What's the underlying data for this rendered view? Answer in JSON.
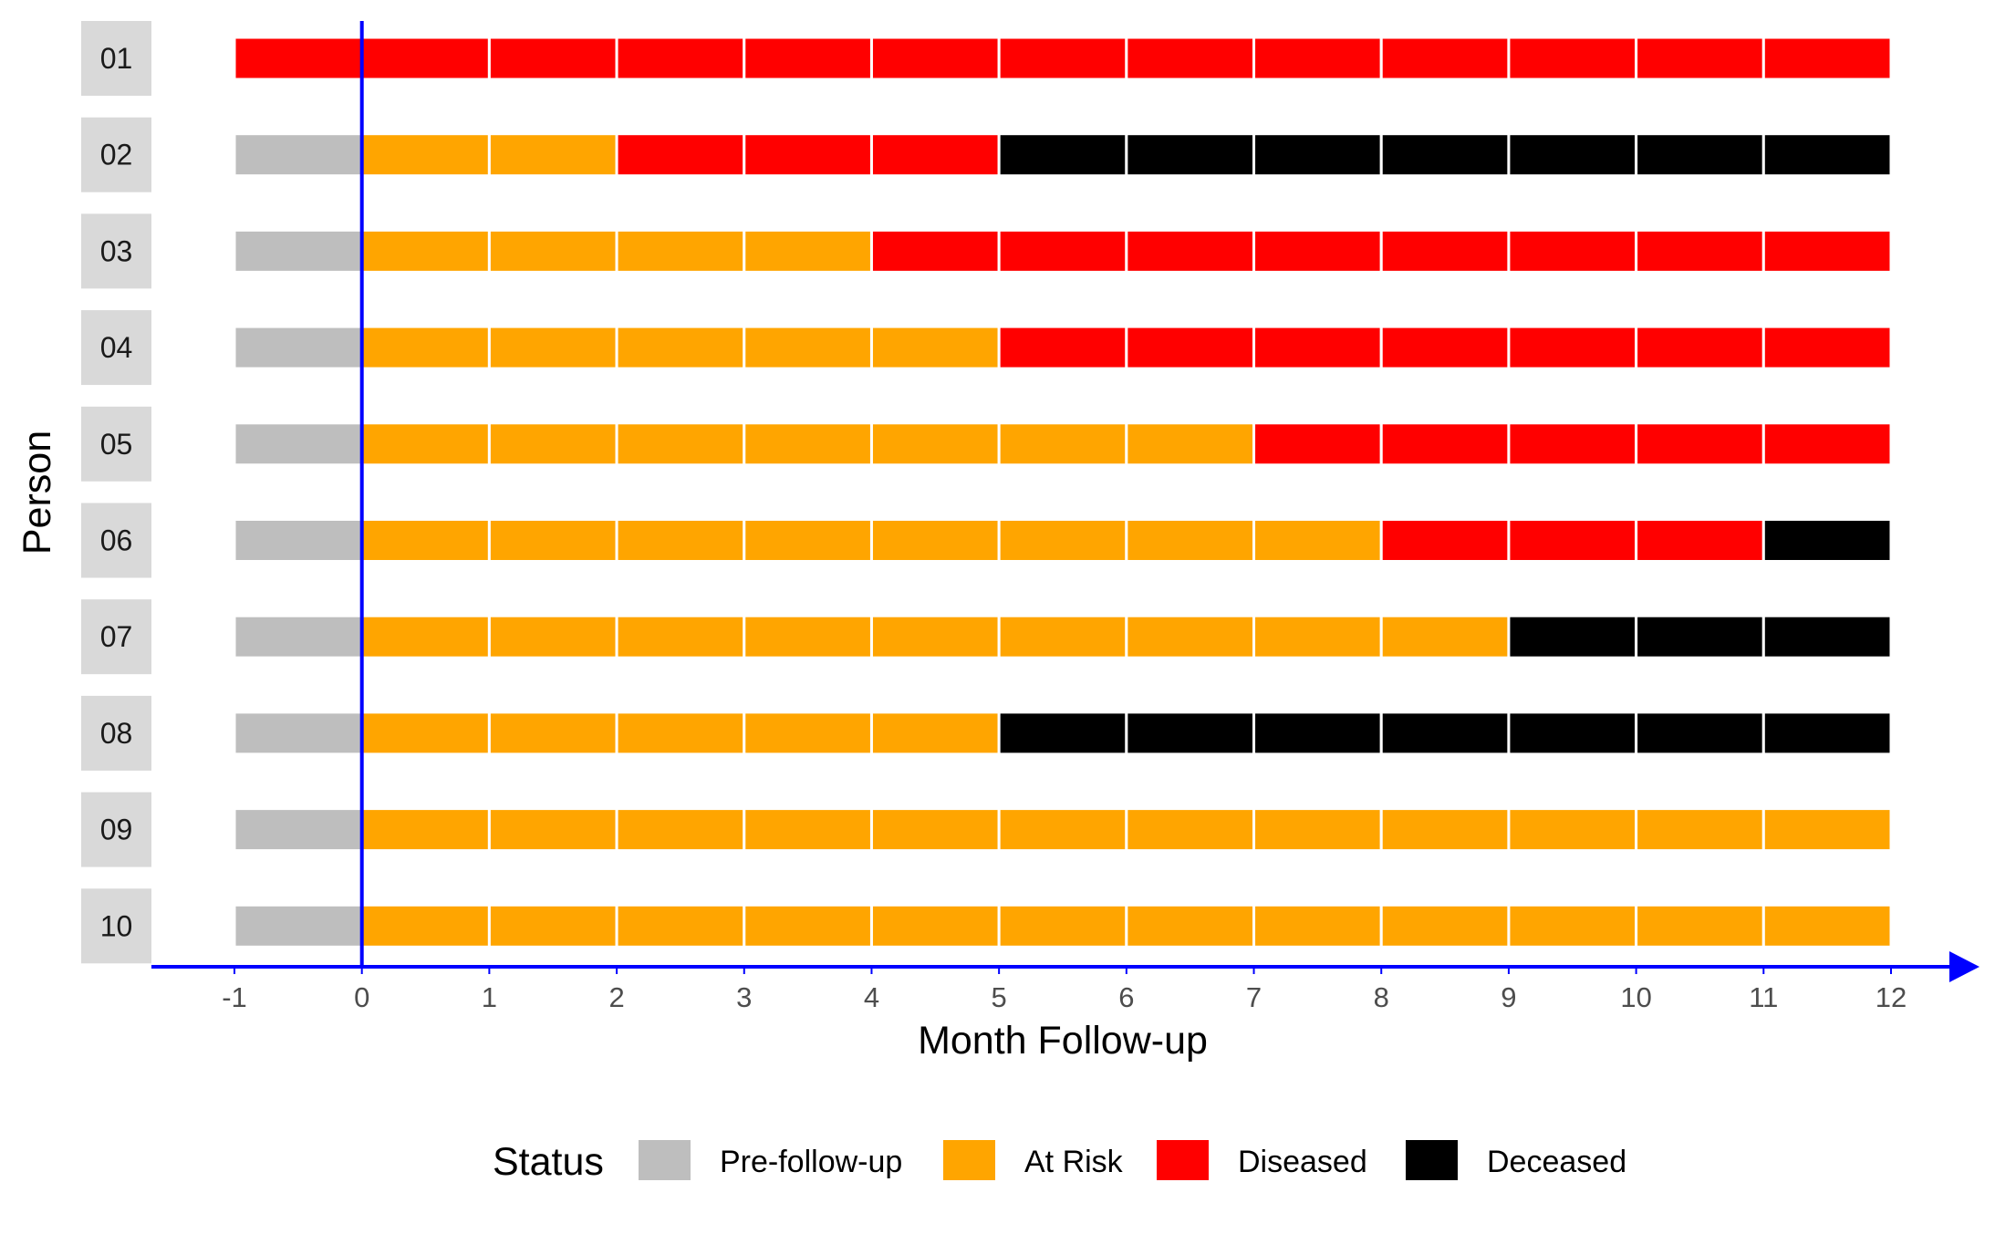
{
  "chart_data": {
    "type": "bar",
    "subtype": "horizontal-timeline",
    "title": "",
    "xlabel": "Month Follow-up",
    "ylabel": "Person",
    "xlim": [
      -1,
      12
    ],
    "x_ticks": [
      -1,
      0,
      1,
      2,
      3,
      4,
      5,
      6,
      7,
      8,
      9,
      10,
      11,
      12
    ],
    "reference_line_x": 0,
    "grid": false,
    "legend": {
      "title": "Status",
      "position": "bottom",
      "entries": [
        {
          "label": "Pre-follow-up",
          "color": "#bebebe"
        },
        {
          "label": "At Risk",
          "color": "#ffa500"
        },
        {
          "label": "Diseased",
          "color": "#ff0000"
        },
        {
          "label": "Deceased",
          "color": "#000000"
        }
      ]
    },
    "persons": [
      {
        "id": "01",
        "segments": [
          {
            "status": "Diseased",
            "start": -1,
            "end": 12
          }
        ]
      },
      {
        "id": "02",
        "segments": [
          {
            "status": "Pre-follow-up",
            "start": -1,
            "end": 0
          },
          {
            "status": "At Risk",
            "start": 0,
            "end": 2
          },
          {
            "status": "Diseased",
            "start": 2,
            "end": 5
          },
          {
            "status": "Deceased",
            "start": 5,
            "end": 12
          }
        ]
      },
      {
        "id": "03",
        "segments": [
          {
            "status": "Pre-follow-up",
            "start": -1,
            "end": 0
          },
          {
            "status": "At Risk",
            "start": 0,
            "end": 4
          },
          {
            "status": "Diseased",
            "start": 4,
            "end": 12
          }
        ]
      },
      {
        "id": "04",
        "segments": [
          {
            "status": "Pre-follow-up",
            "start": -1,
            "end": 0
          },
          {
            "status": "At Risk",
            "start": 0,
            "end": 5
          },
          {
            "status": "Diseased",
            "start": 5,
            "end": 12
          }
        ]
      },
      {
        "id": "05",
        "segments": [
          {
            "status": "Pre-follow-up",
            "start": -1,
            "end": 0
          },
          {
            "status": "At Risk",
            "start": 0,
            "end": 7
          },
          {
            "status": "Diseased",
            "start": 7,
            "end": 12
          }
        ]
      },
      {
        "id": "06",
        "segments": [
          {
            "status": "Pre-follow-up",
            "start": -1,
            "end": 0
          },
          {
            "status": "At Risk",
            "start": 0,
            "end": 8
          },
          {
            "status": "Diseased",
            "start": 8,
            "end": 11
          },
          {
            "status": "Deceased",
            "start": 11,
            "end": 12
          }
        ]
      },
      {
        "id": "07",
        "segments": [
          {
            "status": "Pre-follow-up",
            "start": -1,
            "end": 0
          },
          {
            "status": "At Risk",
            "start": 0,
            "end": 9
          },
          {
            "status": "Deceased",
            "start": 9,
            "end": 12
          }
        ]
      },
      {
        "id": "08",
        "segments": [
          {
            "status": "Pre-follow-up",
            "start": -1,
            "end": 0
          },
          {
            "status": "At Risk",
            "start": 0,
            "end": 5
          },
          {
            "status": "Deceased",
            "start": 5,
            "end": 12
          }
        ]
      },
      {
        "id": "09",
        "segments": [
          {
            "status": "Pre-follow-up",
            "start": -1,
            "end": 0
          },
          {
            "status": "At Risk",
            "start": 0,
            "end": 12
          }
        ]
      },
      {
        "id": "10",
        "segments": [
          {
            "status": "Pre-follow-up",
            "start": -1,
            "end": 0
          },
          {
            "status": "At Risk",
            "start": 0,
            "end": 12
          }
        ]
      }
    ]
  },
  "colors": {
    "axis": "#0000ff",
    "reference_line": "#0000ff",
    "cell_separator": "#ffffff",
    "row_label_bg": "#d9d9d9"
  }
}
